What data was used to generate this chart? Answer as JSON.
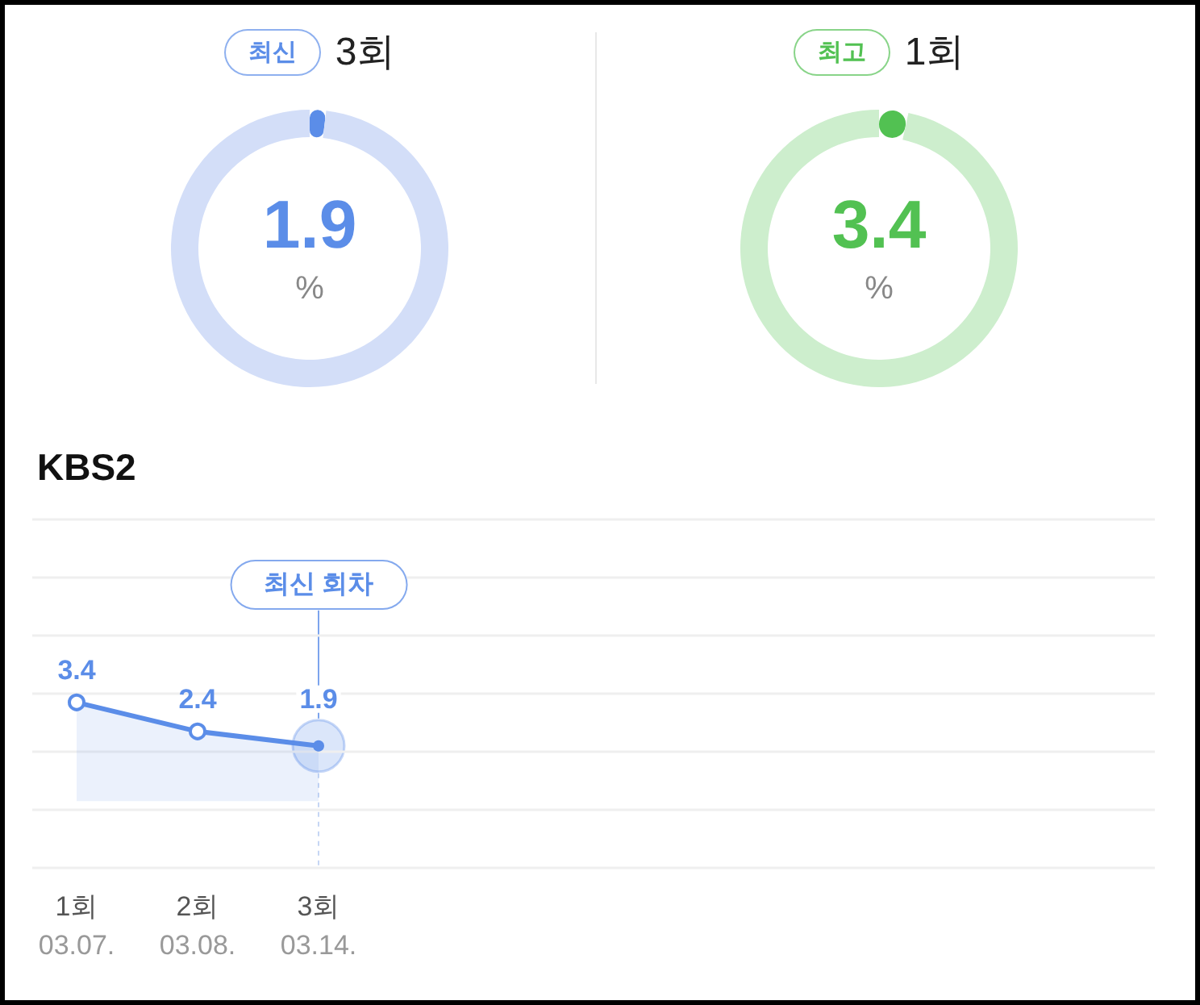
{
  "chart_data": [
    {
      "type": "donut",
      "subtitle": "최신",
      "title": "3회",
      "categories": [
        null,
        null
      ],
      "values": [
        1.9,
        98.1
      ],
      "colors": [
        "#5b8de8",
        "#d3def8"
      ],
      "value_labels": [
        "1.9",
        null
      ],
      "annotations": [
        "%"
      ]
    },
    {
      "type": "donut",
      "subtitle": "최고",
      "title": "1회",
      "categories": [
        null,
        null
      ],
      "values": [
        3.4,
        96.6
      ],
      "colors": [
        "#52c152",
        "#cdeecd"
      ],
      "value_labels": [
        "3.4",
        null
      ],
      "annotations": [
        "%"
      ]
    },
    {
      "type": "area",
      "title": "KBS2",
      "categories": [
        "1회\n03.07.",
        "2회\n03.08.",
        "3회\n03.14."
      ],
      "series": [
        {
          "color": "#5b8de8",
          "values": [
            3.4,
            2.4,
            1.9
          ]
        }
      ],
      "data_labels": true,
      "marker": "circle",
      "grid": "y",
      "tick_labels": "x",
      "ylim": [
        -2.3,
        9.7
      ],
      "yticks": [
        {
          "value": -2.3,
          "label": null
        },
        {
          "value": -0.3,
          "label": null
        },
        {
          "value": 1.7,
          "label": null
        },
        {
          "value": 3.7,
          "label": null
        },
        {
          "value": 5.7,
          "label": null
        },
        {
          "value": 7.7,
          "label": null
        },
        {
          "value": 9.7,
          "label": null
        }
      ],
      "ref_lines": [
        {
          "axis": "x",
          "value": "3회\n03.14.",
          "line_style": "dashed",
          "color": "#c6d6f4"
        }
      ],
      "annotations": [
        {
          "text": "최신 회차",
          "x": "3회\n03.14."
        }
      ]
    }
  ]
}
